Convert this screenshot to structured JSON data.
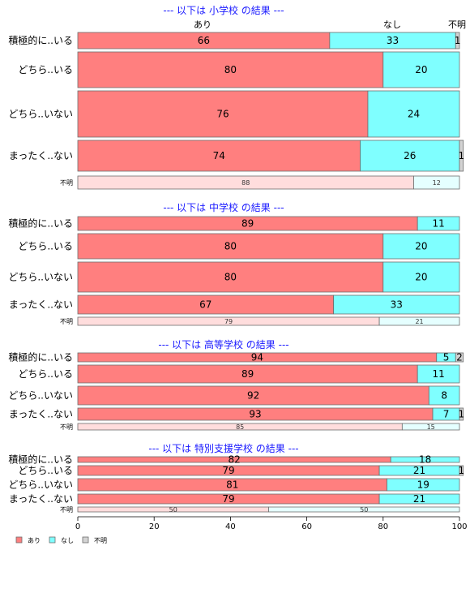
{
  "chart_data": {
    "type": "bar",
    "orientation": "horizontal",
    "stacked": true,
    "percent": true,
    "series_names": [
      "あり",
      "なし",
      "不明"
    ],
    "colors": {
      "あり": "#ff7f7f",
      "なし": "#7fffff",
      "不明": "#d3d3d3",
      "あり_light": "#ffdddd",
      "なし_light": "#e5ffff",
      "border": "#6e6e6e"
    },
    "column_labels": [
      "あり",
      "なし",
      "不明"
    ],
    "xlim": [
      0,
      100
    ],
    "xticks": [
      0,
      20,
      40,
      60,
      80,
      100
    ],
    "groups": [
      {
        "title": "--- 以下は 小学校 の結果 ---",
        "rows": [
          {
            "label": "積極的に..いる",
            "values": [
              66,
              33,
              1
            ]
          },
          {
            "label": "どちら..いる",
            "values": [
              80,
              20,
              0
            ]
          },
          {
            "label": "どちら..いない",
            "values": [
              76,
              24,
              0
            ]
          },
          {
            "label": "まったく..ない",
            "values": [
              74,
              26,
              1
            ]
          },
          {
            "label": "不明",
            "small": true,
            "values": [
              88,
              12,
              0
            ]
          }
        ]
      },
      {
        "title": "--- 以下は 中学校 の結果 ---",
        "rows": [
          {
            "label": "積極的に..いる",
            "values": [
              89,
              11,
              0
            ]
          },
          {
            "label": "どちら..いる",
            "values": [
              80,
              20,
              0
            ]
          },
          {
            "label": "どちら..いない",
            "values": [
              80,
              20,
              0
            ]
          },
          {
            "label": "まったく..ない",
            "values": [
              67,
              33,
              0
            ]
          },
          {
            "label": "不明",
            "small": true,
            "values": [
              79,
              21,
              0
            ]
          }
        ]
      },
      {
        "title": "--- 以下は 高等学校 の結果 ---",
        "rows": [
          {
            "label": "積極的に..いる",
            "values": [
              94,
              5,
              2
            ]
          },
          {
            "label": "どちら..いる",
            "values": [
              89,
              11,
              0
            ]
          },
          {
            "label": "どちら..いない",
            "values": [
              92,
              8,
              0
            ]
          },
          {
            "label": "まったく..ない",
            "values": [
              93,
              7,
              1
            ]
          },
          {
            "label": "不明",
            "small": true,
            "values": [
              85,
              15,
              0
            ]
          }
        ]
      },
      {
        "title": "--- 以下は 特別支援学校 の結果 ---",
        "rows": [
          {
            "label": "積極的に..いる",
            "values": [
              82,
              18,
              0
            ]
          },
          {
            "label": "どちら..いる",
            "values": [
              79,
              21,
              1
            ]
          },
          {
            "label": "どちら..いない",
            "values": [
              81,
              19,
              0
            ]
          },
          {
            "label": "まったく..ない",
            "values": [
              79,
              21,
              0
            ]
          },
          {
            "label": "不明",
            "small": true,
            "values": [
              50,
              50,
              0
            ]
          }
        ]
      }
    ],
    "legend": {
      "position": "bottom-left",
      "entries": [
        "あり",
        "なし",
        "不明"
      ]
    }
  }
}
